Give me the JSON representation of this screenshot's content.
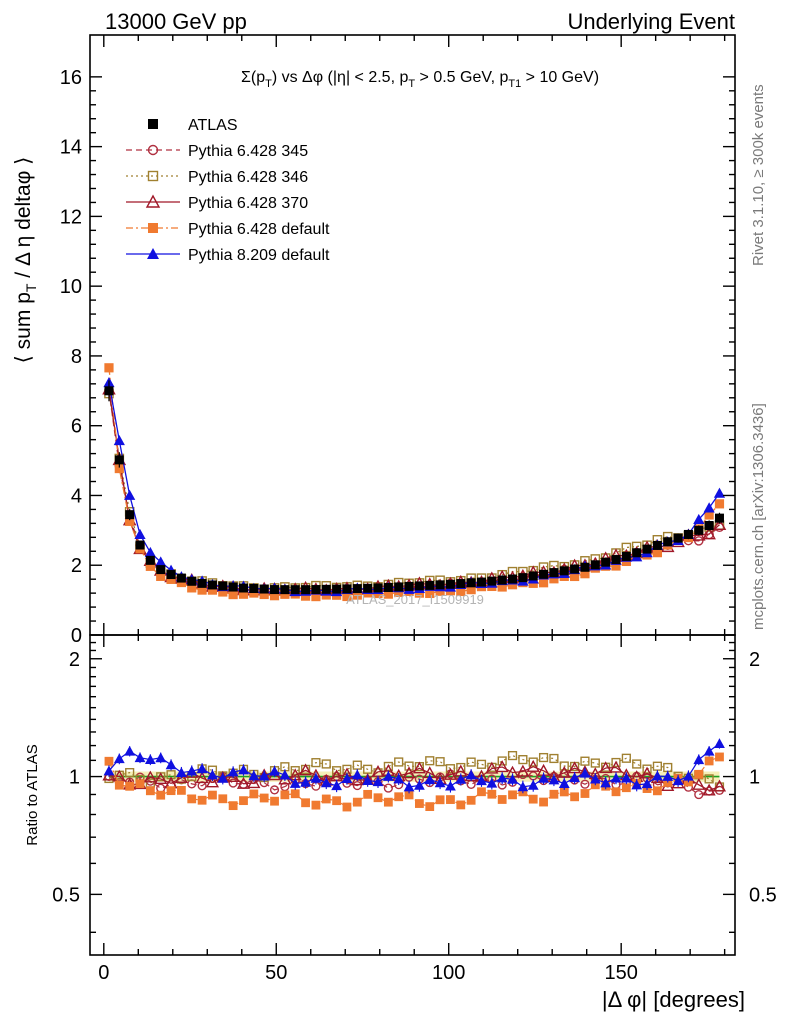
{
  "header": {
    "left_label": "13000 GeV pp",
    "right_label": "Underlying Event",
    "rivet_label": "Rivet 3.1.10, ≥ 300k events",
    "mcplots_label": "mcplots.cern.ch [arXiv:1306.3436]",
    "watermark": "ATLAS_2017_I1509919"
  },
  "chart_data": [
    {
      "type": "scatter",
      "panel": "main",
      "title": "Σ(pT) vs Δφ (|η| < 2.5, pT > 0.5 GeV, pT1 > 10 GeV)",
      "title_parts": {
        "p1": "Σ(p",
        "s1": "T",
        "p2": ") vs Δφ (|η| < 2.5, p",
        "s2": "T",
        "p3": " > 0.5 GeV, p",
        "s3": "T1",
        "p4": " > 10 GeV)"
      },
      "ylabel": "⟨ sum pT / Δ η deltaφ ⟩",
      "ylabel_parts": {
        "a": "⟨ sum p",
        "b": "T",
        "c": " / Δ η deltaφ ⟩"
      },
      "xlim": [
        -4,
        183
      ],
      "ylim": [
        0,
        17.2
      ],
      "yticks": [
        0,
        2,
        4,
        6,
        8,
        10,
        12,
        14,
        16
      ],
      "ytick_labels": [
        "0",
        "2",
        "4",
        "6",
        "8",
        "10",
        "12",
        "14",
        "16"
      ],
      "x_knots": [
        1.8,
        4.8,
        7.8,
        10.8,
        13.8,
        16.8,
        19.8,
        25,
        30,
        40,
        50,
        60,
        70,
        80,
        90,
        100,
        110,
        120,
        130,
        140,
        150,
        160,
        170,
        175,
        178.2
      ],
      "data_knots": [
        7.0,
        4.8,
        3.3,
        2.5,
        2.1,
        1.85,
        1.72,
        1.55,
        1.45,
        1.35,
        1.3,
        1.3,
        1.32,
        1.35,
        1.4,
        1.45,
        1.52,
        1.62,
        1.78,
        1.95,
        2.2,
        2.55,
        2.9,
        3.1,
        3.35
      ],
      "legend": [
        {
          "name": "ATLAS",
          "color": "#000000",
          "marker": "square-filled",
          "line": "none"
        },
        {
          "name": "Pythia 6.428 345",
          "color": "#b03040",
          "marker": "circle-open",
          "line": "dashed"
        },
        {
          "name": "Pythia 6.428 346",
          "color": "#a08030",
          "marker": "square-open",
          "line": "dotted"
        },
        {
          "name": "Pythia 6.428 370",
          "color": "#a01828",
          "marker": "triangle-open",
          "line": "solid"
        },
        {
          "name": "Pythia 6.428 default",
          "color": "#f07a30",
          "marker": "square-filled",
          "line": "dashdot"
        },
        {
          "name": "Pythia 8.209 default",
          "color": "#1010e0",
          "marker": "triangle-filled",
          "line": "solid"
        }
      ]
    },
    {
      "type": "scatter",
      "panel": "ratio",
      "ylabel": "Ratio to ATLAS",
      "ylim": [
        0.35,
        2.3
      ],
      "log_y": true,
      "yticks": [
        0.5,
        1,
        2
      ],
      "ytick_labels": [
        "0.5",
        "1",
        "2"
      ],
      "xlabel": "|Δ φ| [degrees]",
      "xticks": [
        0,
        50,
        100,
        150
      ],
      "xtick_labels": [
        "0",
        "50",
        "100",
        "150"
      ],
      "reference_line": 1,
      "series": [
        {
          "name": "Pythia 6.428 345",
          "knots_x": [
            1.8,
            20,
            60,
            100,
            140,
            170,
            178.2
          ],
          "knots_y": [
            0.97,
            0.97,
            0.96,
            0.98,
            0.99,
            0.95,
            0.91
          ]
        },
        {
          "name": "Pythia 6.428 346",
          "knots_x": [
            1.8,
            20,
            60,
            100,
            120,
            150,
            170,
            178.2
          ],
          "knots_y": [
            1.0,
            1.0,
            1.05,
            1.07,
            1.1,
            1.08,
            1.02,
            0.96
          ]
        },
        {
          "name": "Pythia 6.428 370",
          "knots_x": [
            1.8,
            20,
            60,
            100,
            140,
            170,
            178.2
          ],
          "knots_y": [
            0.99,
            0.98,
            1.0,
            1.02,
            1.04,
            0.97,
            0.92
          ]
        },
        {
          "name": "Pythia 6.428 default",
          "knots_x": [
            1.8,
            5,
            20,
            60,
            100,
            140,
            170,
            178.2
          ],
          "knots_y": [
            1.1,
            0.97,
            0.89,
            0.87,
            0.87,
            0.91,
            0.98,
            1.1
          ]
        },
        {
          "name": "Pythia 8.209 default",
          "knots_x": [
            1.8,
            8,
            20,
            60,
            100,
            140,
            170,
            178.2
          ],
          "knots_y": [
            1.07,
            1.15,
            1.05,
            0.98,
            0.97,
            0.98,
            0.99,
            1.24
          ]
        }
      ]
    }
  ]
}
